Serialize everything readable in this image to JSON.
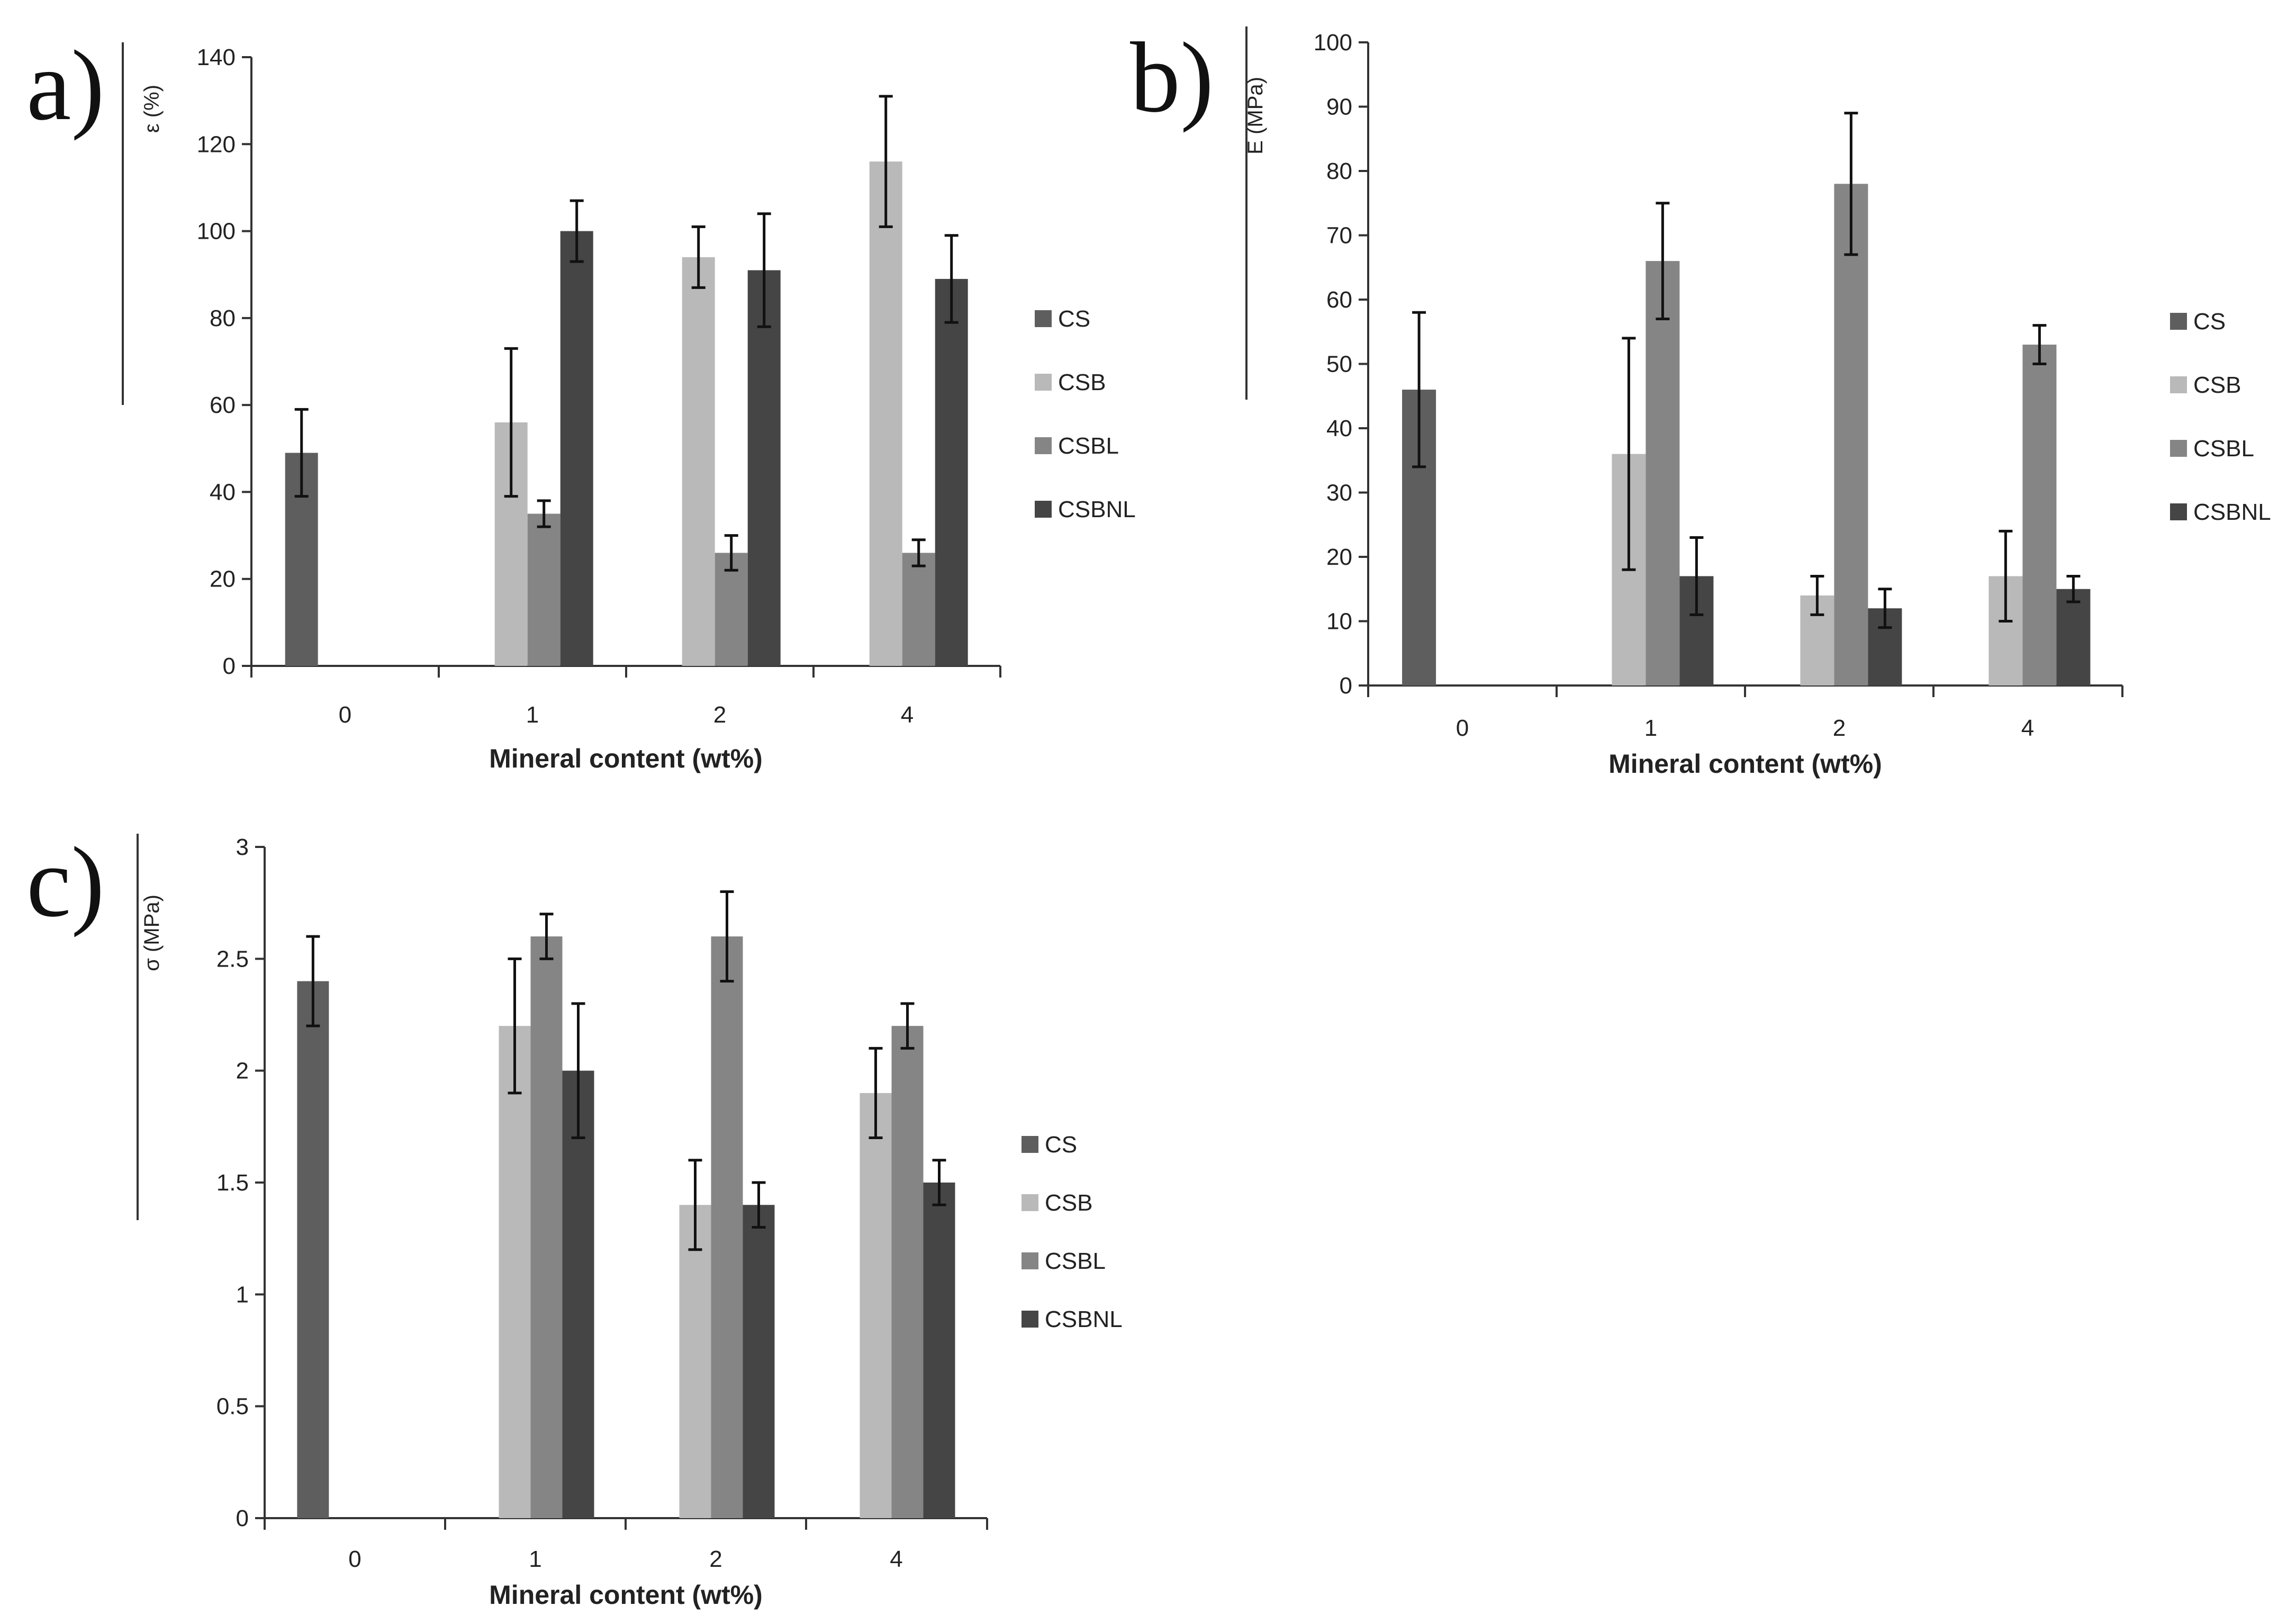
{
  "colors": {
    "CS": "#5e5e5e",
    "CSB": "#b9b9b9",
    "CSBL": "#858585",
    "CSBNL": "#454545"
  },
  "chart_data": [
    {
      "type": "bar",
      "panel": "a)",
      "ylabel": "ε (%)",
      "xlabel": "Mineral content (wt%)",
      "categories": [
        "0",
        "1",
        "2",
        "4"
      ],
      "ylim": [
        0,
        140
      ],
      "yticks": [
        0,
        20,
        40,
        60,
        80,
        100,
        120,
        140
      ],
      "series": [
        {
          "name": "CS",
          "values": [
            49,
            null,
            null,
            null
          ],
          "errors": [
            10,
            null,
            null,
            null
          ]
        },
        {
          "name": "CSB",
          "values": [
            null,
            56,
            94,
            116
          ],
          "errors": [
            null,
            17,
            7,
            15
          ]
        },
        {
          "name": "CSBL",
          "values": [
            null,
            35,
            26,
            26
          ],
          "errors": [
            null,
            3,
            4,
            3
          ]
        },
        {
          "name": "CSBNL",
          "values": [
            null,
            100,
            91,
            89
          ],
          "errors": [
            null,
            7,
            13,
            10
          ]
        }
      ],
      "legend": [
        "CS",
        "CSB",
        "CSBL",
        "CSBNL"
      ]
    },
    {
      "type": "bar",
      "panel": "b)",
      "ylabel": "E (MPa)",
      "xlabel": "Mineral content (wt%)",
      "categories": [
        "0",
        "1",
        "2",
        "4"
      ],
      "ylim": [
        0,
        100
      ],
      "yticks": [
        0,
        10,
        20,
        30,
        40,
        50,
        60,
        70,
        80,
        90,
        100
      ],
      "series": [
        {
          "name": "CS",
          "values": [
            46,
            null,
            null,
            null
          ],
          "errors": [
            12,
            null,
            null,
            null
          ]
        },
        {
          "name": "CSB",
          "values": [
            null,
            36,
            14,
            17
          ],
          "errors": [
            null,
            18,
            3,
            7
          ]
        },
        {
          "name": "CSBL",
          "values": [
            null,
            66,
            78,
            53
          ],
          "errors": [
            null,
            9,
            11,
            3
          ]
        },
        {
          "name": "CSBNL",
          "values": [
            null,
            17,
            12,
            15
          ],
          "errors": [
            null,
            6,
            3,
            2
          ]
        }
      ],
      "legend": [
        "CS",
        "CSB",
        "CSBL",
        "CSBNL"
      ]
    },
    {
      "type": "bar",
      "panel": "c)",
      "ylabel": "σ (MPa)",
      "xlabel": "Mineral content (wt%)",
      "categories": [
        "0",
        "1",
        "2",
        "4"
      ],
      "ylim": [
        0,
        3
      ],
      "yticks": [
        "0",
        "0.5",
        "1",
        "1.5",
        "2",
        "2.5",
        "3"
      ],
      "series": [
        {
          "name": "CS",
          "values": [
            2.4,
            null,
            null,
            null
          ],
          "errors": [
            0.2,
            null,
            null,
            null
          ]
        },
        {
          "name": "CSB",
          "values": [
            null,
            2.2,
            1.4,
            1.9
          ],
          "errors": [
            null,
            0.3,
            0.2,
            0.2
          ]
        },
        {
          "name": "CSBL",
          "values": [
            null,
            2.6,
            2.6,
            2.2
          ],
          "errors": [
            null,
            0.1,
            0.2,
            0.1
          ]
        },
        {
          "name": "CSBNL",
          "values": [
            null,
            2.0,
            1.4,
            1.5
          ],
          "errors": [
            null,
            0.3,
            0.1,
            0.1
          ]
        }
      ],
      "legend": [
        "CS",
        "CSB",
        "CSBL",
        "CSBNL"
      ]
    }
  ]
}
